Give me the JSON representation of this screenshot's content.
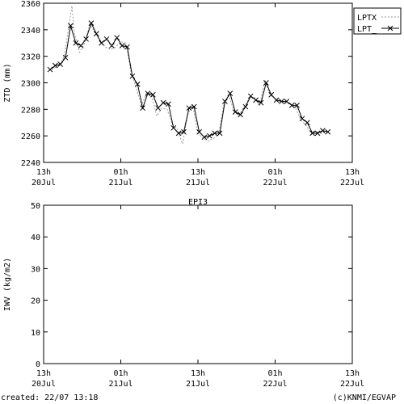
{
  "colors": {
    "grid": "#000000",
    "series_dashed": "#9a9a9a",
    "series_solid": "#000000"
  },
  "chart_data": [
    {
      "type": "line",
      "title": "",
      "xlabel": "",
      "ylabel": "ZTD (mm)",
      "ylim": [
        2240,
        2360
      ],
      "yticks": [
        2240,
        2260,
        2280,
        2300,
        2320,
        2340,
        2360
      ],
      "xlim": [
        0,
        48
      ],
      "xticks": [
        {
          "x": 0,
          "line1": "13h",
          "line2": "20Jul"
        },
        {
          "x": 12,
          "line1": "01h",
          "line2": "21Jul"
        },
        {
          "x": 24,
          "line1": "13h",
          "line2": "21Jul"
        },
        {
          "x": 36,
          "line1": "01h",
          "line2": "22Jul"
        },
        {
          "x": 48,
          "line1": "13h",
          "line2": "22Jul"
        }
      ],
      "grid": false,
      "legend": "top-right outside",
      "series": [
        {
          "name": "LPTX",
          "style": "dashed",
          "points": [
            [
              0.8,
              2309
            ],
            [
              1.6,
              2311
            ],
            [
              2.4,
              2313
            ],
            [
              3.2,
              2320
            ],
            [
              4.0,
              2345
            ],
            [
              4.4,
              2358
            ],
            [
              4.8,
              2337
            ],
            [
              5.6,
              2323
            ],
            [
              6.4,
              2330
            ],
            [
              7.2,
              2344
            ],
            [
              8.0,
              2338
            ],
            [
              8.8,
              2332
            ],
            [
              9.6,
              2327
            ],
            [
              10.4,
              2325
            ],
            [
              11.2,
              2327
            ],
            [
              12.0,
              2331
            ],
            [
              12.8,
              2330
            ],
            [
              13.6,
              2308
            ],
            [
              14.4,
              2296
            ],
            [
              15.2,
              2283
            ],
            [
              16.0,
              2292
            ],
            [
              16.8,
              2290
            ],
            [
              17.6,
              2275
            ],
            [
              18.4,
              2281
            ],
            [
              19.2,
              2280
            ],
            [
              20.0,
              2269
            ],
            [
              20.8,
              2265
            ],
            [
              21.6,
              2254
            ],
            [
              22.4,
              2276
            ],
            [
              23.2,
              2283
            ],
            [
              24.0,
              2262
            ],
            [
              24.8,
              2258
            ],
            [
              25.6,
              2256
            ],
            [
              26.4,
              2258
            ],
            [
              27.2,
              2261
            ],
            [
              28.0,
              2283
            ],
            [
              28.8,
              2290
            ],
            [
              29.6,
              2279
            ],
            [
              30.4,
              2276
            ],
            [
              31.2,
              2282
            ],
            [
              32.0,
              2289
            ],
            [
              32.8,
              2289
            ],
            [
              33.6,
              2283
            ],
            [
              34.4,
              2302
            ],
            [
              35.2,
              2291
            ],
            [
              36.0,
              2288
            ],
            [
              36.8,
              2286
            ],
            [
              37.6,
              2285
            ],
            [
              38.4,
              2284
            ],
            [
              39.2,
              2281
            ],
            [
              40.0,
              2272
            ],
            [
              40.8,
              2268
            ],
            [
              41.6,
              2262
            ],
            [
              42.4,
              2263
            ],
            [
              43.2,
              2262
            ],
            [
              44.0,
              2263
            ]
          ]
        },
        {
          "name": "LPT_",
          "style": "solid-x",
          "points": [
            [
              1.0,
              2310
            ],
            [
              1.8,
              2313
            ],
            [
              2.6,
              2314
            ],
            [
              3.4,
              2319
            ],
            [
              4.2,
              2343
            ],
            [
              5.0,
              2330
            ],
            [
              5.8,
              2328
            ],
            [
              6.6,
              2333
            ],
            [
              7.4,
              2345
            ],
            [
              8.2,
              2337
            ],
            [
              9.0,
              2330
            ],
            [
              9.8,
              2333
            ],
            [
              10.6,
              2328
            ],
            [
              11.4,
              2334
            ],
            [
              12.2,
              2328
            ],
            [
              13.0,
              2327
            ],
            [
              13.8,
              2305
            ],
            [
              14.6,
              2299
            ],
            [
              15.4,
              2281
            ],
            [
              16.2,
              2292
            ],
            [
              17.0,
              2291
            ],
            [
              17.8,
              2281
            ],
            [
              18.6,
              2285
            ],
            [
              19.4,
              2284
            ],
            [
              20.2,
              2266
            ],
            [
              21.0,
              2262
            ],
            [
              21.8,
              2263
            ],
            [
              22.6,
              2281
            ],
            [
              23.4,
              2282
            ],
            [
              24.2,
              2263
            ],
            [
              25.0,
              2259
            ],
            [
              25.8,
              2260
            ],
            [
              26.6,
              2262
            ],
            [
              27.4,
              2262
            ],
            [
              28.2,
              2286
            ],
            [
              29.0,
              2292
            ],
            [
              29.8,
              2278
            ],
            [
              30.6,
              2276
            ],
            [
              31.4,
              2282
            ],
            [
              32.2,
              2290
            ],
            [
              33.0,
              2287
            ],
            [
              33.8,
              2285
            ],
            [
              34.6,
              2300
            ],
            [
              35.4,
              2291
            ],
            [
              36.2,
              2287
            ],
            [
              37.0,
              2286
            ],
            [
              37.8,
              2286
            ],
            [
              38.6,
              2283
            ],
            [
              39.4,
              2283
            ],
            [
              40.2,
              2273
            ],
            [
              41.0,
              2270
            ],
            [
              41.8,
              2262
            ],
            [
              42.6,
              2262
            ],
            [
              43.4,
              2264
            ],
            [
              44.2,
              2263
            ]
          ]
        }
      ]
    },
    {
      "type": "line",
      "title": "EPI3",
      "xlabel": "",
      "ylabel": "IWV (kg/m2)",
      "ylim": [
        0,
        50
      ],
      "yticks": [
        0,
        10,
        20,
        30,
        40,
        50
      ],
      "xlim": [
        0,
        48
      ],
      "xticks": [
        {
          "x": 0,
          "line1": "13h",
          "line2": "20Jul"
        },
        {
          "x": 12,
          "line1": "01h",
          "line2": "21Jul"
        },
        {
          "x": 24,
          "line1": "13h",
          "line2": "21Jul"
        },
        {
          "x": 36,
          "line1": "01h",
          "line2": "22Jul"
        },
        {
          "x": 48,
          "line1": "13h",
          "line2": "22Jul"
        }
      ],
      "grid": false,
      "series": []
    }
  ],
  "footer": {
    "created": "created: 22/07 13:18",
    "copyright": "(c)KNMI/EGVAP"
  }
}
